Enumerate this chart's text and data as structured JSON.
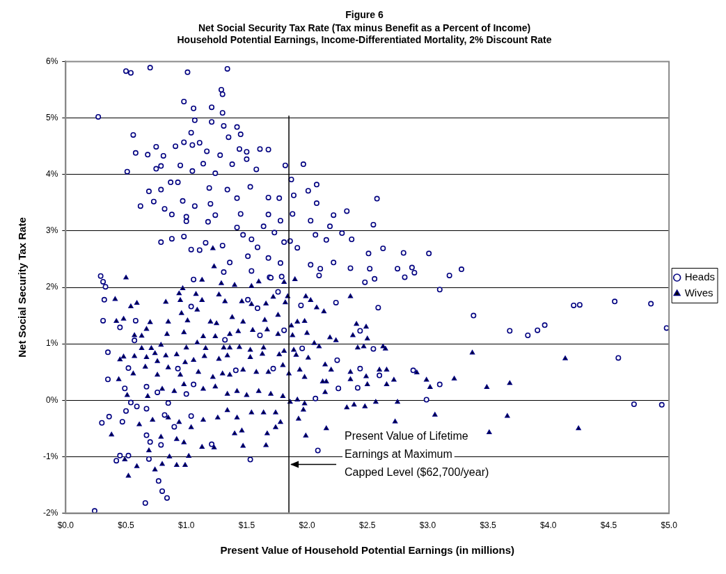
{
  "chart_data": {
    "type": "scatter",
    "title": "Figure 6",
    "subtitle": "Net Social Security Tax Rate (Tax minus Benefit as a Percent of Income)\nHousehold Potential Earnings, Income-Differentiated Mortality, 2% Discount Rate",
    "xlabel": "Present Value of Household Potential Earnings (in millions)",
    "ylabel": "Net Social Security Tax Rate",
    "xlim": [
      0,
      5
    ],
    "xticks": [
      {
        "value": 0,
        "label": "$0.0"
      },
      {
        "value": 0.5,
        "label": "$0.5"
      },
      {
        "value": 1,
        "label": "$1.0"
      },
      {
        "value": 1.5,
        "label": "$1.5"
      },
      {
        "value": 2,
        "label": "$2.0"
      },
      {
        "value": 2.5,
        "label": "$2.5"
      },
      {
        "value": 3,
        "label": "$3.0"
      },
      {
        "value": 3.5,
        "label": "$3.5"
      },
      {
        "value": 4,
        "label": "$4.0"
      },
      {
        "value": 4.5,
        "label": "$4.5"
      },
      {
        "value": 5,
        "label": "$5.0"
      }
    ],
    "ylim": [
      -2,
      6
    ],
    "yticks": [
      {
        "value": -2,
        "label": "-2%"
      },
      {
        "value": -1,
        "label": "-1%"
      },
      {
        "value": 0,
        "label": "0%"
      },
      {
        "value": 1,
        "label": "1%"
      },
      {
        "value": 2,
        "label": "2%"
      },
      {
        "value": 3,
        "label": "3%"
      },
      {
        "value": 4,
        "label": "4%"
      },
      {
        "value": 5,
        "label": "5%"
      },
      {
        "value": 6,
        "label": "6%"
      }
    ],
    "grid": "y",
    "legend": "right",
    "ref_lines": [
      {
        "axis": "x",
        "value": 1.85,
        "label": "Present Value of Lifetime\nEarnings at Maximum\nCapped Level ($62,700/year)",
        "color": "#000000"
      }
    ],
    "series": [
      {
        "name": "Heads",
        "color": "#000080",
        "marker": "circle",
        "x": [
          0.5,
          0.54,
          0.7,
          1.01,
          1.34,
          1.29,
          1.3,
          0.98,
          1.06,
          1.21,
          1.3,
          0.27,
          1.07,
          1.21,
          1.31,
          1.42,
          1.45,
          0.56,
          1.04,
          1.35,
          0.98,
          1.11,
          1.05,
          0.75,
          0.91,
          0.58,
          0.68,
          0.81,
          1.17,
          1.28,
          1.44,
          1.5,
          1.61,
          1.68,
          1.5,
          0.79,
          0.95,
          1.14,
          1.38,
          1.82,
          1.97,
          0.51,
          0.75,
          1.05,
          1.24,
          1.58,
          1.87,
          0.87,
          0.93,
          0.69,
          0.79,
          1.19,
          1.34,
          1.53,
          2.01,
          2.08,
          0.62,
          0.73,
          0.97,
          0.82,
          1.07,
          1.2,
          1.42,
          1.68,
          1.77,
          1.89,
          2.08,
          2.58,
          0.88,
          1.0,
          1.24,
          1.45,
          1.68,
          1.88,
          2.22,
          2.33,
          1.0,
          1.18,
          1.42,
          1.64,
          1.78,
          2.03,
          2.19,
          2.55,
          0.79,
          0.88,
          0.98,
          1.04,
          1.11,
          1.16,
          1.3,
          1.47,
          1.54,
          1.59,
          1.73,
          1.81,
          1.86,
          1.92,
          2.07,
          2.16,
          2.29,
          2.37,
          2.63,
          2.8,
          1.36,
          1.51,
          1.68,
          1.78,
          2.03,
          2.11,
          2.22,
          2.36,
          2.51,
          2.52,
          2.75,
          1.31,
          1.54,
          1.69,
          1.79,
          2.1,
          2.48,
          2.56,
          0.29,
          0.31,
          0.33,
          1.06,
          3.01,
          2.81,
          2.87,
          2.89,
          3.18,
          3.28,
          3.1,
          3.38,
          3.68,
          3.83,
          3.91,
          3.97,
          4.21,
          4.26,
          4.55,
          4.85,
          4.98,
          4.58,
          2.88,
          3.1,
          2.99,
          4.71,
          4.94,
          0.32,
          0.31,
          0.45,
          0.58,
          0.57,
          0.35,
          0.52,
          0.35,
          0.49,
          0.67,
          0.54,
          0.59,
          0.5,
          0.67,
          0.36,
          0.3,
          0.47,
          0.67,
          0.7,
          0.79,
          0.45,
          0.52,
          0.42,
          0.69,
          0.77,
          0.8,
          0.84,
          0.66,
          0.24,
          1.53,
          2.09,
          1.04,
          1.51,
          1.59,
          1.61,
          1.32,
          1.81,
          1.96,
          1.95,
          2.24,
          2.59,
          2.44,
          2.55,
          2.25,
          2.26,
          2.44,
          2.6,
          2.42,
          2.07,
          1.06,
          1.0,
          0.82,
          1.21,
          1.41,
          1.72,
          0.93,
          0.76,
          0.85,
          1.04,
          0.9,
          1.76,
          1.7
        ],
        "values": [
          5.83,
          5.8,
          5.89,
          5.81,
          5.87,
          5.5,
          5.42,
          5.29,
          5.17,
          5.19,
          5.09,
          5.02,
          4.96,
          4.93,
          4.86,
          4.84,
          4.71,
          4.7,
          4.74,
          4.66,
          4.57,
          4.56,
          4.52,
          4.49,
          4.5,
          4.38,
          4.35,
          4.33,
          4.41,
          4.34,
          4.45,
          4.4,
          4.45,
          4.44,
          4.27,
          4.15,
          4.16,
          4.19,
          4.18,
          4.16,
          4.18,
          4.05,
          4.1,
          4.06,
          4.02,
          4.09,
          3.91,
          3.86,
          3.86,
          3.7,
          3.73,
          3.76,
          3.73,
          3.78,
          3.71,
          3.82,
          3.44,
          3.52,
          3.53,
          3.39,
          3.44,
          3.48,
          3.58,
          3.59,
          3.58,
          3.63,
          3.49,
          3.57,
          3.29,
          3.25,
          3.28,
          3.3,
          3.29,
          3.3,
          3.28,
          3.35,
          3.17,
          3.16,
          3.06,
          3.08,
          3.18,
          3.18,
          3.08,
          3.11,
          2.8,
          2.86,
          2.9,
          2.67,
          2.66,
          2.79,
          2.74,
          2.93,
          2.85,
          2.71,
          2.97,
          2.8,
          2.82,
          2.7,
          2.93,
          2.84,
          2.96,
          2.85,
          2.69,
          2.61,
          2.44,
          2.55,
          2.52,
          2.43,
          2.4,
          2.33,
          2.44,
          2.34,
          2.6,
          2.33,
          2.33,
          2.27,
          2.29,
          2.18,
          2.19,
          2.21,
          2.09,
          2.15,
          2.2,
          2.1,
          2.01,
          2.14,
          2.6,
          2.18,
          2.35,
          2.26,
          2.21,
          2.32,
          1.96,
          1.5,
          1.23,
          1.15,
          1.24,
          1.33,
          1.68,
          1.69,
          1.75,
          1.71,
          1.28,
          0.75,
          0.53,
          0.28,
          0.01,
          -0.07,
          -0.08,
          1.78,
          1.41,
          1.29,
          1.41,
          1.06,
          0.85,
          0.57,
          0.37,
          0.21,
          0.24,
          -0.04,
          -0.11,
          -0.19,
          -0.15,
          -0.29,
          -0.4,
          -0.38,
          -0.62,
          -0.74,
          -0.79,
          -0.98,
          -0.98,
          -1.07,
          -1.04,
          -1.43,
          -1.61,
          -1.73,
          -1.82,
          -1.96,
          -1.05,
          -0.89,
          1.66,
          1.78,
          1.63,
          1.15,
          1.07,
          1.24,
          0.92,
          1.68,
          1.73,
          1.64,
          1.23,
          0.91,
          0.71,
          0.21,
          0.56,
          0.44,
          0.22,
          0.03,
          0.28,
          0.11,
          -0.26,
          -0.78,
          0.53,
          0.56,
          0.56,
          0.14,
          -0.05,
          -0.28,
          -0.47,
          1.92,
          2.17
        ]
      },
      {
        "name": "Wives",
        "color": "#000000",
        "marker": "triangle",
        "x": [
          0.5,
          1.22,
          1.23,
          1.13,
          1.81,
          1.9,
          1.6,
          1.29,
          1.4,
          0.97,
          0.41,
          0.54,
          0.59,
          0.42,
          0.48,
          0.7,
          0.83,
          0.94,
          0.95,
          1.08,
          1.13,
          1.54,
          1.27,
          1.32,
          1.46,
          1.54,
          1.66,
          1.72,
          1.84,
          1.82,
          1.99,
          2.03,
          2.08,
          2.14,
          2.36,
          0.96,
          1.01,
          1.09,
          1.2,
          1.25,
          1.38,
          1.47,
          1.65,
          1.76,
          1.87,
          1.92,
          1.98,
          2.41,
          2.49,
          2.38,
          2.5,
          0.57,
          0.63,
          0.67,
          0.85,
          0.84,
          0.98,
          1.09,
          1.14,
          1.24,
          1.36,
          1.43,
          1.55,
          1.67,
          1.76,
          1.88,
          2.0,
          2.19,
          2.24,
          2.06,
          2.1,
          2.42,
          2.47,
          2.63,
          2.65,
          0.63,
          0.71,
          0.79,
          1.0,
          1.16,
          1.31,
          1.36,
          1.44,
          1.53,
          1.64,
          1.81,
          1.89,
          0.45,
          0.48,
          0.57,
          0.67,
          0.74,
          0.83,
          0.92,
          1.06,
          1.15,
          1.27,
          1.34,
          1.53,
          1.63,
          1.77,
          1.91,
          2.01,
          2.15,
          2.2,
          2.36,
          2.49,
          2.6,
          2.66,
          2.72,
          2.66,
          2.5,
          2.36,
          0.44,
          0.56,
          0.66,
          0.76,
          0.76,
          0.85,
          0.95,
          0.99,
          1.1,
          1.22,
          1.3,
          1.36,
          1.47,
          1.58,
          1.68,
          1.8,
          1.85,
          1.94,
          1.98,
          2.13,
          2.16,
          0.51,
          0.68,
          0.8,
          0.9,
          0.98,
          1.14,
          1.24,
          1.34,
          1.42,
          1.5,
          1.6,
          1.7,
          1.8,
          1.86,
          1.92,
          1.98,
          2.15,
          2.33,
          2.39,
          2.48,
          2.57,
          2.75,
          2.73,
          2.16,
          1.99,
          1.93,
          1.97,
          0.38,
          0.61,
          0.72,
          0.85,
          0.94,
          1.04,
          1.14,
          1.26,
          1.34,
          1.42,
          1.54,
          1.64,
          1.74,
          1.78,
          1.74,
          1.4,
          1.46,
          1.67,
          0.79,
          0.92,
          0.98,
          1.13,
          1.23,
          1.47,
          1.66,
          0.86,
          1.02,
          0.8,
          0.92,
          0.99,
          0.59,
          0.49,
          0.74,
          0.52,
          0.69,
          3.37,
          4.14,
          2.91,
          2.99,
          3.02,
          3.22,
          3.49,
          3.68,
          3.06,
          3.66,
          3.51,
          4.25
        ],
        "values": [
          2.17,
          2.69,
          2.37,
          2.13,
          2.09,
          2.14,
          2.1,
          2.07,
          2.04,
          1.98,
          1.79,
          1.66,
          1.72,
          1.4,
          1.44,
          1.38,
          1.74,
          1.89,
          1.77,
          1.88,
          1.77,
          2.02,
          1.87,
          1.75,
          1.75,
          1.7,
          1.71,
          1.83,
          1.84,
          1.73,
          1.84,
          1.77,
          1.64,
          1.57,
          1.84,
          1.54,
          1.41,
          1.6,
          1.39,
          1.36,
          1.47,
          1.39,
          1.42,
          1.51,
          1.32,
          1.39,
          1.4,
          1.35,
          1.3,
          1.15,
          1.09,
          1.15,
          1.14,
          1.26,
          1.39,
          1.17,
          1.2,
          1.02,
          1.13,
          1.13,
          1.17,
          1.22,
          1.24,
          1.25,
          1.17,
          1.15,
          1.19,
          1.11,
          1.06,
          1.01,
          0.95,
          0.93,
          0.95,
          0.95,
          0.91,
          0.92,
          0.92,
          0.98,
          0.93,
          0.92,
          0.93,
          0.93,
          0.94,
          0.89,
          0.93,
          0.87,
          0.89,
          0.72,
          0.77,
          0.78,
          0.76,
          0.83,
          0.79,
          0.81,
          0.71,
          0.78,
          0.73,
          0.79,
          0.76,
          0.82,
          0.81,
          0.8,
          0.75,
          0.63,
          0.54,
          0.5,
          0.42,
          0.54,
          0.54,
          0.36,
          0.28,
          0.28,
          0.37,
          0.37,
          0.47,
          0.59,
          0.69,
          0.45,
          0.58,
          0.45,
          0.67,
          0.5,
          0.41,
          0.47,
          0.45,
          0.54,
          0.5,
          0.5,
          0.62,
          0.47,
          0.54,
          0.41,
          0.33,
          0.33,
          0.09,
          0.07,
          0.2,
          0.16,
          0.28,
          0.2,
          0.24,
          0.11,
          0.16,
          0.09,
          0.16,
          0.11,
          0.07,
          -0.03,
          0.01,
          -0.06,
          0.14,
          -0.13,
          -0.08,
          -0.11,
          -0.03,
          -0.03,
          -0.38,
          -0.5,
          -0.63,
          -0.33,
          -0.17,
          -0.61,
          -0.43,
          -0.35,
          -0.31,
          -0.39,
          -0.48,
          -0.35,
          -0.31,
          -0.18,
          -0.31,
          -0.22,
          -0.22,
          -0.22,
          -0.39,
          -0.48,
          -0.59,
          -0.54,
          -0.59,
          -0.65,
          -0.69,
          -0.75,
          -0.83,
          -0.84,
          -0.81,
          -0.8,
          -1.0,
          -0.99,
          -1.13,
          -1.15,
          -1.15,
          -1.17,
          -1.05,
          -1.23,
          -1.34,
          -0.89,
          0.84,
          0.74,
          0.49,
          0.36,
          0.23,
          0.38,
          0.23,
          0.3,
          -0.26,
          -0.28,
          -0.57,
          -0.5
        ]
      }
    ]
  }
}
